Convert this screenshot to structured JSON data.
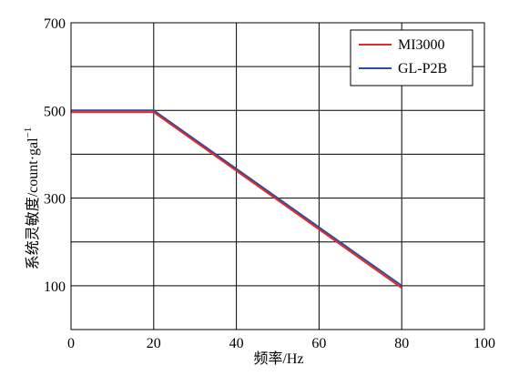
{
  "chart_data": {
    "type": "line",
    "xlabel": "频率/Hz",
    "ylabel": "系统灵敏度/count·gal",
    "ylabel_superscript": "−1",
    "xlim": [
      0,
      100
    ],
    "ylim": [
      0,
      700
    ],
    "x_ticks": [
      0,
      20,
      40,
      60,
      80,
      100
    ],
    "y_ticks_labeled": [
      100,
      300,
      500,
      700
    ],
    "y_gridlines": [
      100,
      200,
      300,
      400,
      500,
      600,
      700
    ],
    "grid": true,
    "legend_position": "top-right",
    "series": [
      {
        "name": "MI3000",
        "color": "#e8262b",
        "x": [
          0,
          20,
          80
        ],
        "y": [
          496,
          496,
          95
        ]
      },
      {
        "name": "GL-P2B",
        "color": "#2a4f9a",
        "x": [
          0,
          20,
          80
        ],
        "y": [
          500,
          500,
          100
        ]
      }
    ]
  }
}
